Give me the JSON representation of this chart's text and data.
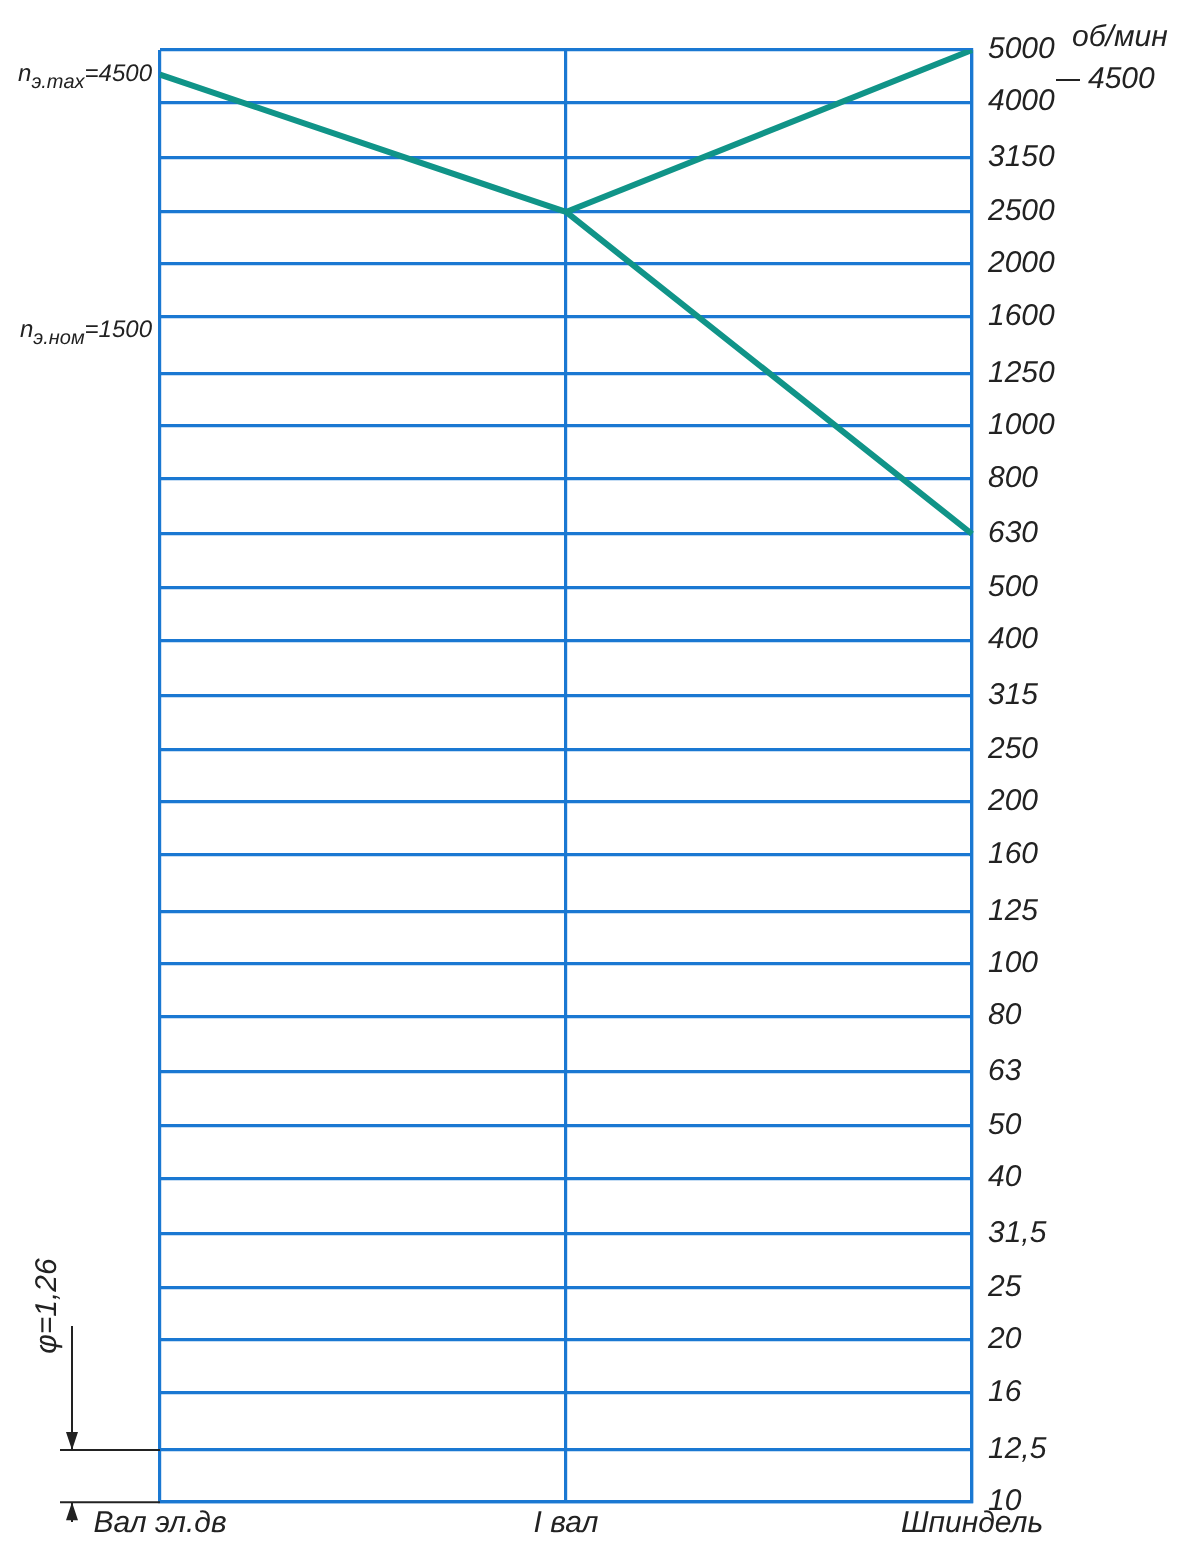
{
  "chart_data": {
    "type": "line",
    "categories": [
      "Вал эл.дв",
      "I вал",
      "Шпиндель"
    ],
    "series": [
      {
        "color": "#109488",
        "values": [
          4500,
          2500,
          630
        ]
      },
      {
        "color": "#109488",
        "values": [
          null,
          2500,
          5000
        ]
      }
    ],
    "ylabel": "об/мин",
    "log": "y",
    "ylim": [
      10,
      5000
    ],
    "yticks": [
      10,
      {
        "value": 12.5,
        "label": "12,5"
      },
      16,
      20,
      25,
      {
        "value": 31.5,
        "label": "31,5"
      },
      40,
      50,
      63,
      80,
      100,
      125,
      160,
      200,
      250,
      315,
      400,
      500,
      630,
      800,
      1000,
      1250,
      1600,
      2000,
      2500,
      3150,
      4000,
      5000
    ],
    "grid": true,
    "legend": false,
    "marker": "none",
    "line_style": "solid",
    "annotations": [
      {
        "text": "n$_{э.max}$=4500",
        "x": "Вал эл.дв",
        "y": 4500
      },
      "n$_{э.ном}$=1500",
      "4500",
      "φ=1,26"
    ]
  }
}
